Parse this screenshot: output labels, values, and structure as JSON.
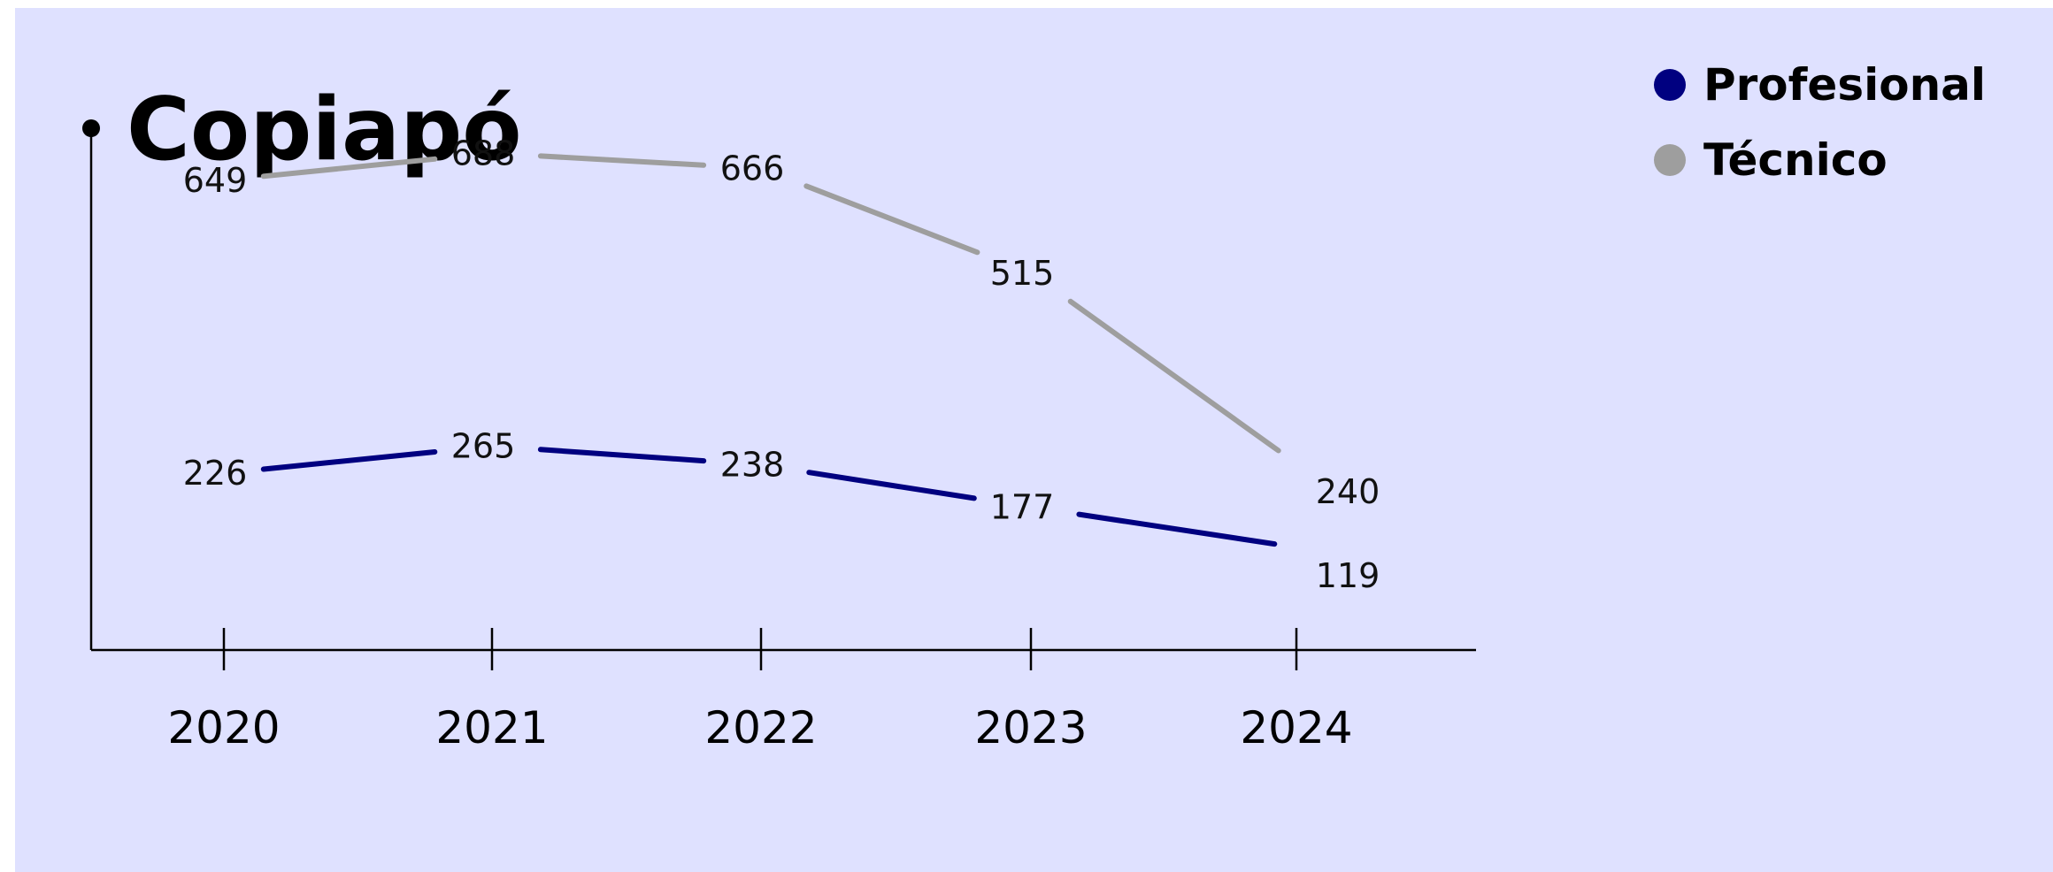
{
  "chart_data": {
    "type": "line",
    "title": "Copiapó",
    "xlabel": "",
    "ylabel": "",
    "categories": [
      "2020",
      "2021",
      "2022",
      "2023",
      "2024"
    ],
    "ylim": [
      0,
      800
    ],
    "grid": false,
    "legend_position": "top-right",
    "series": [
      {
        "name": "Profesional",
        "color": "#000080",
        "values": [
          226,
          265,
          238,
          177,
          119
        ]
      },
      {
        "name": "Técnico",
        "color": "#9e9e9e",
        "values": [
          649,
          688,
          666,
          515,
          240
        ]
      }
    ]
  }
}
